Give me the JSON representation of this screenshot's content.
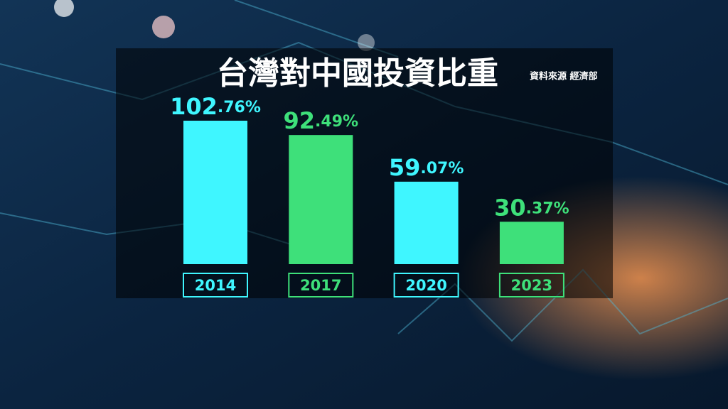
{
  "chart_data": {
    "type": "bar",
    "title": "台灣對中國投資比重",
    "source": "資料來源 經濟部",
    "categories": [
      "2014",
      "2017",
      "2020",
      "2023"
    ],
    "values": [
      102.76,
      92.49,
      59.07,
      30.37
    ],
    "value_labels": [
      "102.76%",
      "92.49%",
      "59.07%",
      "30.37%"
    ],
    "colors": [
      "#3ff6ff",
      "#3ee07a",
      "#3ff6ff",
      "#3ee07a"
    ]
  }
}
